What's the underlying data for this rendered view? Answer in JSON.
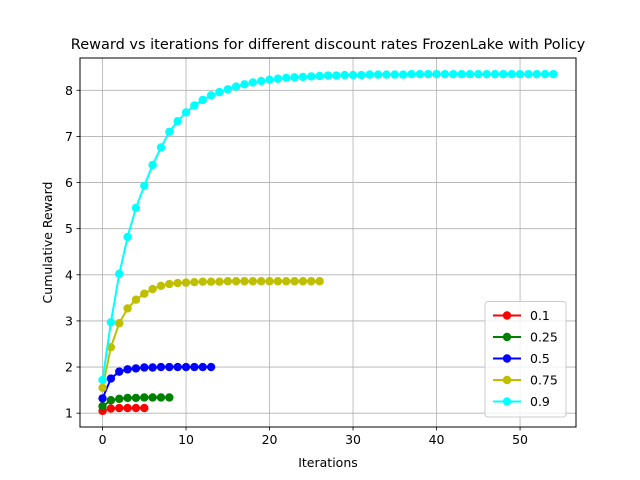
{
  "chart_data": {
    "type": "line",
    "title": "Reward vs iterations for different discount rates FrozenLake with Policy",
    "xlabel": "Iterations",
    "ylabel": "Cumulative Reward",
    "xlim": [
      -2.7,
      56.7
    ],
    "ylim": [
      0.7,
      8.7
    ],
    "xticks": [
      0,
      10,
      20,
      30,
      40,
      50
    ],
    "yticks": [
      1,
      2,
      3,
      4,
      5,
      6,
      7,
      8
    ],
    "grid": true,
    "legend_position": "lower right",
    "series": [
      {
        "name": "0.1",
        "color": "#ff0000",
        "x": [
          0,
          1,
          2,
          3,
          4,
          5
        ],
        "y": [
          1.05,
          1.1,
          1.11,
          1.11,
          1.11,
          1.11
        ]
      },
      {
        "name": "0.25",
        "color": "#008000",
        "x": [
          0,
          1,
          2,
          3,
          4,
          5,
          6,
          7,
          8
        ],
        "y": [
          1.15,
          1.28,
          1.31,
          1.33,
          1.33,
          1.34,
          1.34,
          1.34,
          1.34
        ]
      },
      {
        "name": "0.5",
        "color": "#0000ff",
        "x": [
          0,
          1,
          2,
          3,
          4,
          5,
          6,
          7,
          8,
          9,
          10,
          11,
          12,
          13
        ],
        "y": [
          1.32,
          1.75,
          1.9,
          1.95,
          1.97,
          1.99,
          1.99,
          2.0,
          2.0,
          2.0,
          2.0,
          2.0,
          2.0,
          2.0
        ]
      },
      {
        "name": "0.75",
        "color": "#bfbf00",
        "x": [
          0,
          1,
          2,
          3,
          4,
          5,
          6,
          7,
          8,
          9,
          10,
          11,
          12,
          13,
          14,
          15,
          16,
          17,
          18,
          19,
          20,
          21,
          22,
          23,
          24,
          25,
          26
        ],
        "y": [
          1.55,
          2.43,
          2.95,
          3.27,
          3.46,
          3.59,
          3.69,
          3.76,
          3.8,
          3.82,
          3.83,
          3.84,
          3.85,
          3.85,
          3.85,
          3.86,
          3.86,
          3.86,
          3.86,
          3.86,
          3.86,
          3.86,
          3.86,
          3.86,
          3.86,
          3.86,
          3.86
        ]
      },
      {
        "name": "0.9",
        "color": "#00ffff",
        "x": [
          0,
          1,
          2,
          3,
          4,
          5,
          6,
          7,
          8,
          9,
          10,
          11,
          12,
          13,
          14,
          15,
          16,
          17,
          18,
          19,
          20,
          21,
          22,
          23,
          24,
          25,
          26,
          27,
          28,
          29,
          30,
          31,
          32,
          33,
          34,
          35,
          36,
          37,
          38,
          39,
          40,
          41,
          42,
          43,
          44,
          45,
          46,
          47,
          48,
          49,
          50,
          51,
          52,
          53,
          54
        ],
        "y": [
          1.72,
          2.97,
          4.02,
          4.82,
          5.45,
          5.93,
          6.38,
          6.76,
          7.1,
          7.33,
          7.52,
          7.67,
          7.79,
          7.89,
          7.96,
          8.02,
          8.08,
          8.13,
          8.17,
          8.2,
          8.23,
          8.25,
          8.27,
          8.28,
          8.29,
          8.3,
          8.31,
          8.32,
          8.32,
          8.33,
          8.33,
          8.33,
          8.34,
          8.34,
          8.34,
          8.34,
          8.34,
          8.35,
          8.35,
          8.35,
          8.35,
          8.35,
          8.35,
          8.35,
          8.35,
          8.35,
          8.35,
          8.35,
          8.35,
          8.35,
          8.35,
          8.35,
          8.35,
          8.35,
          8.35
        ]
      }
    ]
  }
}
